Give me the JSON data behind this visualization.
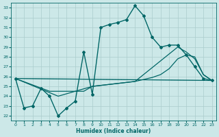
{
  "xlabel": "Humidex (Indice chaleur)",
  "bg_color": "#cce8e8",
  "grid_color": "#aacccc",
  "line_color": "#006666",
  "xlim": [
    -0.5,
    23.5
  ],
  "ylim": [
    21.5,
    33.5
  ],
  "yticks": [
    22,
    23,
    24,
    25,
    26,
    27,
    28,
    29,
    30,
    31,
    32,
    33
  ],
  "xticks": [
    0,
    1,
    2,
    3,
    4,
    5,
    6,
    7,
    8,
    9,
    10,
    11,
    12,
    13,
    14,
    15,
    16,
    17,
    18,
    19,
    20,
    21,
    22,
    23
  ],
  "lines": [
    {
      "x": [
        0,
        1,
        2,
        3,
        4,
        5,
        6,
        7,
        8,
        9,
        10,
        11,
        12,
        13,
        14,
        15,
        16,
        17,
        18,
        19,
        20,
        21,
        22,
        23
      ],
      "y": [
        25.8,
        22.8,
        23.0,
        24.8,
        24.0,
        22.0,
        22.8,
        23.5,
        28.5,
        24.2,
        31.0,
        31.3,
        31.5,
        31.8,
        33.2,
        32.2,
        30.0,
        29.0,
        29.2,
        29.2,
        28.2,
        27.0,
        25.8,
        25.6
      ],
      "marker": "D",
      "ms": 2.0,
      "lw": 1.0
    },
    {
      "x": [
        0,
        23
      ],
      "y": [
        25.8,
        25.6
      ],
      "marker": null,
      "ms": 0,
      "lw": 0.9
    },
    {
      "x": [
        0,
        4,
        5,
        8,
        9,
        10,
        11,
        12,
        13,
        14,
        15,
        16,
        17,
        18,
        19,
        20,
        21,
        22,
        23
      ],
      "y": [
        25.8,
        24.5,
        24.5,
        24.5,
        25.0,
        25.1,
        25.2,
        25.3,
        25.4,
        25.5,
        25.7,
        25.9,
        26.2,
        26.8,
        27.8,
        28.2,
        28.0,
        26.2,
        25.6
      ],
      "marker": null,
      "ms": 0,
      "lw": 0.9
    },
    {
      "x": [
        0,
        5,
        9,
        14,
        19,
        20,
        21,
        22,
        23
      ],
      "y": [
        25.8,
        24.0,
        25.0,
        25.5,
        29.0,
        28.5,
        27.8,
        26.2,
        25.6
      ],
      "marker": null,
      "ms": 0,
      "lw": 0.9
    },
    {
      "x": [
        0,
        23
      ],
      "y": [
        25.8,
        25.6
      ],
      "marker": null,
      "ms": 0,
      "lw": 0.6,
      "linestyle": "dotted"
    }
  ]
}
